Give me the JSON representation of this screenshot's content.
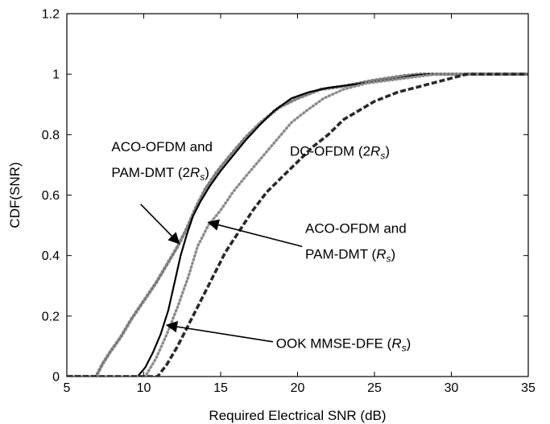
{
  "chart_data": {
    "type": "line",
    "title": "",
    "xlabel": "Required Electrical SNR (dB)",
    "ylabel": "CDF(SNR)",
    "xlim": [
      5,
      35
    ],
    "ylim": [
      0,
      1.2
    ],
    "xticks": [
      "5",
      "10",
      "15",
      "20",
      "25",
      "30",
      "35"
    ],
    "yticks": [
      "0",
      "0.2",
      "0.4",
      "0.6",
      "0.8",
      "1",
      "1.2"
    ],
    "grid": false,
    "legend": "none",
    "series": [
      {
        "style": "dotted-gray-thick",
        "color": "#808080",
        "x": [
          5,
          6.9,
          7.3,
          7.8,
          8.5,
          9.2,
          10,
          10.8,
          11.5,
          12.2,
          12.8,
          13.4,
          14,
          14.8,
          15.6,
          16.6,
          17.6,
          18.8,
          20,
          21.5,
          23,
          25,
          27,
          28,
          29,
          30,
          35
        ],
        "y": [
          0,
          0,
          0.04,
          0.08,
          0.13,
          0.19,
          0.25,
          0.31,
          0.37,
          0.43,
          0.49,
          0.56,
          0.62,
          0.68,
          0.73,
          0.79,
          0.84,
          0.89,
          0.92,
          0.95,
          0.96,
          0.98,
          0.995,
          1,
          1,
          1,
          1
        ]
      },
      {
        "style": "solid-black",
        "color": "#000000",
        "x": [
          5,
          9.6,
          10.1,
          10.6,
          11.1,
          11.6,
          12.0,
          12.4,
          12.8,
          13.2,
          13.7,
          14.3,
          15.0,
          15.8,
          16.6,
          17.5,
          18.5,
          19.6,
          20.7,
          22,
          23.5,
          25,
          26.5,
          27.5,
          28.5,
          35
        ],
        "y": [
          0,
          0,
          0.03,
          0.08,
          0.14,
          0.22,
          0.31,
          0.4,
          0.47,
          0.53,
          0.58,
          0.63,
          0.68,
          0.73,
          0.78,
          0.83,
          0.88,
          0.92,
          0.94,
          0.955,
          0.965,
          0.975,
          0.985,
          0.995,
          1,
          1
        ]
      },
      {
        "style": "dotted-gray",
        "color": "#8c8c8c",
        "x": [
          5,
          10.1,
          10.8,
          11.5,
          12.2,
          12.9,
          13.5,
          14.2,
          15,
          15.8,
          16.6,
          17.6,
          18.6,
          19.6,
          20.6,
          21.7,
          23,
          24.5,
          26,
          27.5,
          29,
          35
        ],
        "y": [
          0,
          0,
          0.06,
          0.14,
          0.23,
          0.33,
          0.43,
          0.5,
          0.55,
          0.61,
          0.66,
          0.72,
          0.78,
          0.84,
          0.88,
          0.92,
          0.95,
          0.97,
          0.98,
          0.99,
          1,
          1
        ]
      },
      {
        "style": "dashed-black-thick",
        "color": "#2a2a2a",
        "x": [
          5,
          10.9,
          11.5,
          12.2,
          12.9,
          13.7,
          14.5,
          15.3,
          16.2,
          17.1,
          18.0,
          19.0,
          20.0,
          21.0,
          22.0,
          23.0,
          24.0,
          25.0,
          26.5,
          28,
          29.5,
          31,
          35
        ],
        "y": [
          0,
          0,
          0.04,
          0.1,
          0.17,
          0.25,
          0.33,
          0.41,
          0.48,
          0.55,
          0.61,
          0.66,
          0.71,
          0.76,
          0.8,
          0.85,
          0.88,
          0.91,
          0.94,
          0.96,
          0.98,
          1,
          1
        ]
      }
    ],
    "annotations": [
      {
        "lines": [
          "ACO-OFDM and",
          "PAM-DMT (2R_s)"
        ],
        "text_x": 7.9,
        "text_y": 0.745,
        "line_gap": 0.085,
        "arrow_from": [
          9.8,
          0.57
        ],
        "arrow_to": [
          12.3,
          0.44
        ]
      },
      {
        "lines": [
          "DC-OFDM (2R_s)"
        ],
        "text_x": 19.5,
        "text_y": 0.73,
        "line_gap": 0.085,
        "arrow_from": null,
        "arrow_to": null
      },
      {
        "lines": [
          "ACO-OFDM and",
          "PAM-DMT (R_s)"
        ],
        "text_x": 20.5,
        "text_y": 0.475,
        "line_gap": 0.085,
        "arrow_from": [
          20.3,
          0.43
        ],
        "arrow_to": [
          14.2,
          0.51
        ]
      },
      {
        "lines": [
          "OOK MMSE-DFE (R_s)"
        ],
        "text_x": 18.6,
        "text_y": 0.095,
        "line_gap": 0.085,
        "arrow_from": [
          18.4,
          0.115
        ],
        "arrow_to": [
          11.5,
          0.17
        ]
      }
    ]
  }
}
